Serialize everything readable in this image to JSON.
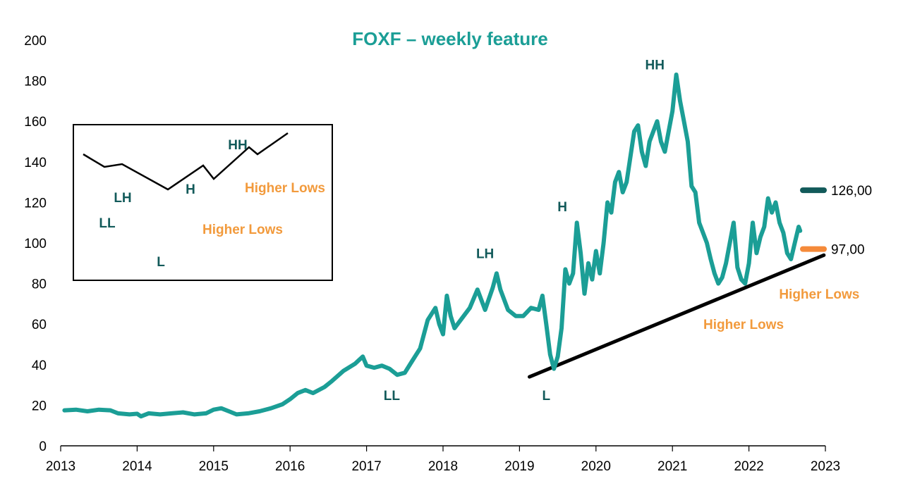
{
  "colors": {
    "series": "#1b9e96",
    "dark_teal": "#125a5a",
    "orange": "#f29a3c",
    "orange_marker": "#f58a3a",
    "trend": "#000000"
  },
  "chart_data": {
    "type": "line",
    "title": "FOXF – weekly feature",
    "xlabel": "",
    "ylabel": "",
    "xlim": [
      2013,
      2023
    ],
    "ylim": [
      0,
      200
    ],
    "x_ticks": [
      "2013",
      "2014",
      "2015",
      "2016",
      "2017",
      "2018",
      "2019",
      "2020",
      "2021",
      "2022",
      "2023"
    ],
    "y_ticks": [
      "0",
      "20",
      "40",
      "60",
      "80",
      "100",
      "120",
      "140",
      "160",
      "180",
      "200"
    ],
    "grid": false,
    "series": [
      {
        "values": [
          [
            2013.05,
            17.5
          ],
          [
            2013.2,
            17.8
          ],
          [
            2013.35,
            17.0
          ],
          [
            2013.5,
            17.8
          ],
          [
            2013.65,
            17.5
          ],
          [
            2013.75,
            16.0
          ],
          [
            2013.9,
            15.5
          ],
          [
            2014.0,
            15.8
          ],
          [
            2014.05,
            14.5
          ],
          [
            2014.15,
            16.0
          ],
          [
            2014.3,
            15.5
          ],
          [
            2014.45,
            16.0
          ],
          [
            2014.6,
            16.5
          ],
          [
            2014.75,
            15.5
          ],
          [
            2014.9,
            16.0
          ],
          [
            2015.0,
            17.8
          ],
          [
            2015.1,
            18.5
          ],
          [
            2015.2,
            17.0
          ],
          [
            2015.3,
            15.5
          ],
          [
            2015.45,
            16.0
          ],
          [
            2015.6,
            17.0
          ],
          [
            2015.75,
            18.5
          ],
          [
            2015.9,
            20.5
          ],
          [
            2016.0,
            23.0
          ],
          [
            2016.1,
            26.0
          ],
          [
            2016.2,
            27.5
          ],
          [
            2016.3,
            26.0
          ],
          [
            2016.45,
            29.0
          ],
          [
            2016.55,
            32.0
          ],
          [
            2016.7,
            37.0
          ],
          [
            2016.85,
            40.5
          ],
          [
            2016.95,
            44.0
          ],
          [
            2017.0,
            39.5
          ],
          [
            2017.1,
            38.5
          ],
          [
            2017.2,
            39.5
          ],
          [
            2017.3,
            38.0
          ],
          [
            2017.4,
            35.0
          ],
          [
            2017.5,
            36.0
          ],
          [
            2017.6,
            42.0
          ],
          [
            2017.7,
            48.0
          ],
          [
            2017.75,
            55.0
          ],
          [
            2017.8,
            62.0
          ],
          [
            2017.9,
            68.0
          ],
          [
            2017.95,
            60.0
          ],
          [
            2018.0,
            55.0
          ],
          [
            2018.05,
            74.0
          ],
          [
            2018.1,
            64.0
          ],
          [
            2018.15,
            58.0
          ],
          [
            2018.25,
            63.0
          ],
          [
            2018.35,
            68.0
          ],
          [
            2018.45,
            77.0
          ],
          [
            2018.55,
            67.0
          ],
          [
            2018.65,
            78.0
          ],
          [
            2018.7,
            85.0
          ],
          [
            2018.75,
            77.0
          ],
          [
            2018.85,
            67.0
          ],
          [
            2018.95,
            64.0
          ],
          [
            2019.05,
            64.0
          ],
          [
            2019.15,
            68.0
          ],
          [
            2019.25,
            67.0
          ],
          [
            2019.3,
            74.0
          ],
          [
            2019.35,
            60.0
          ],
          [
            2019.4,
            45.0
          ],
          [
            2019.45,
            38.0
          ],
          [
            2019.5,
            44.0
          ],
          [
            2019.55,
            58.0
          ],
          [
            2019.6,
            87.0
          ],
          [
            2019.65,
            80.0
          ],
          [
            2019.7,
            85.0
          ],
          [
            2019.75,
            110.0
          ],
          [
            2019.8,
            95.0
          ],
          [
            2019.85,
            75.0
          ],
          [
            2019.9,
            90.0
          ],
          [
            2019.95,
            82.0
          ],
          [
            2020.0,
            96.0
          ],
          [
            2020.05,
            85.0
          ],
          [
            2020.1,
            100.0
          ],
          [
            2020.15,
            120.0
          ],
          [
            2020.2,
            115.0
          ],
          [
            2020.25,
            130.0
          ],
          [
            2020.3,
            135.0
          ],
          [
            2020.35,
            125.0
          ],
          [
            2020.4,
            130.0
          ],
          [
            2020.5,
            155.0
          ],
          [
            2020.55,
            158.0
          ],
          [
            2020.6,
            145.0
          ],
          [
            2020.65,
            138.0
          ],
          [
            2020.7,
            150.0
          ],
          [
            2020.75,
            155.0
          ],
          [
            2020.8,
            160.0
          ],
          [
            2020.85,
            150.0
          ],
          [
            2020.9,
            145.0
          ],
          [
            2020.95,
            155.0
          ],
          [
            2021.0,
            165.0
          ],
          [
            2021.05,
            183.0
          ],
          [
            2021.1,
            170.0
          ],
          [
            2021.15,
            160.0
          ],
          [
            2021.2,
            150.0
          ],
          [
            2021.25,
            128.0
          ],
          [
            2021.3,
            125.0
          ],
          [
            2021.35,
            110.0
          ],
          [
            2021.45,
            100.0
          ],
          [
            2021.5,
            92.0
          ],
          [
            2021.55,
            85.0
          ],
          [
            2021.6,
            80.0
          ],
          [
            2021.65,
            83.0
          ],
          [
            2021.7,
            90.0
          ],
          [
            2021.75,
            100.0
          ],
          [
            2021.8,
            110.0
          ],
          [
            2021.85,
            88.0
          ],
          [
            2021.9,
            82.0
          ],
          [
            2021.95,
            80.0
          ],
          [
            2022.0,
            90.0
          ],
          [
            2022.05,
            110.0
          ],
          [
            2022.1,
            95.0
          ],
          [
            2022.15,
            103.0
          ],
          [
            2022.2,
            108.0
          ],
          [
            2022.25,
            122.0
          ],
          [
            2022.3,
            115.0
          ],
          [
            2022.35,
            120.0
          ],
          [
            2022.4,
            110.0
          ],
          [
            2022.45,
            105.0
          ],
          [
            2022.5,
            95.0
          ],
          [
            2022.55,
            92.0
          ],
          [
            2022.6,
            100.0
          ],
          [
            2022.65,
            108.0
          ],
          [
            2022.67,
            106.0
          ]
        ]
      }
    ],
    "trendline": [
      [
        2019.13,
        34.0
      ],
      [
        2022.98,
        94.0
      ]
    ],
    "levels": [
      {
        "value": 126,
        "label": "126,00",
        "color": "#125a5a"
      },
      {
        "value": 97,
        "label": "97,00",
        "color": "#f58a3a"
      }
    ],
    "annotations": [
      {
        "text": "LL",
        "x": 2017.33,
        "y": 25.0,
        "color": "#125a5a"
      },
      {
        "text": "LH",
        "x": 2018.55,
        "y": 95.0,
        "color": "#125a5a"
      },
      {
        "text": "L",
        "x": 2019.35,
        "y": 25.0,
        "color": "#125a5a"
      },
      {
        "text": "H",
        "x": 2019.56,
        "y": 118.0,
        "color": "#125a5a"
      },
      {
        "text": "HH",
        "x": 2020.77,
        "y": 188.0,
        "color": "#125a5a"
      },
      {
        "text": "Higher Lows",
        "x": 2021.93,
        "y": 60.0,
        "color": "#f29a3c"
      },
      {
        "text": "Higher Lows",
        "x": 2022.92,
        "y": 75.0,
        "color": "#f29a3c"
      }
    ],
    "inset": {
      "points": [
        [
          0,
          30
        ],
        [
          30,
          48
        ],
        [
          55,
          44
        ],
        [
          120,
          80
        ],
        [
          170,
          46
        ],
        [
          185,
          65
        ],
        [
          235,
          20
        ],
        [
          247,
          30
        ],
        [
          290,
          0
        ]
      ],
      "labels": [
        {
          "text": "LL",
          "color": "#125a5a"
        },
        {
          "text": "LH",
          "color": "#125a5a"
        },
        {
          "text": "L",
          "color": "#125a5a"
        },
        {
          "text": "H",
          "color": "#125a5a"
        },
        {
          "text": "Higher Lows",
          "color": "#f29a3c"
        },
        {
          "text": "HH",
          "color": "#125a5a"
        },
        {
          "text": "Higher Lows",
          "color": "#f29a3c"
        }
      ]
    }
  }
}
